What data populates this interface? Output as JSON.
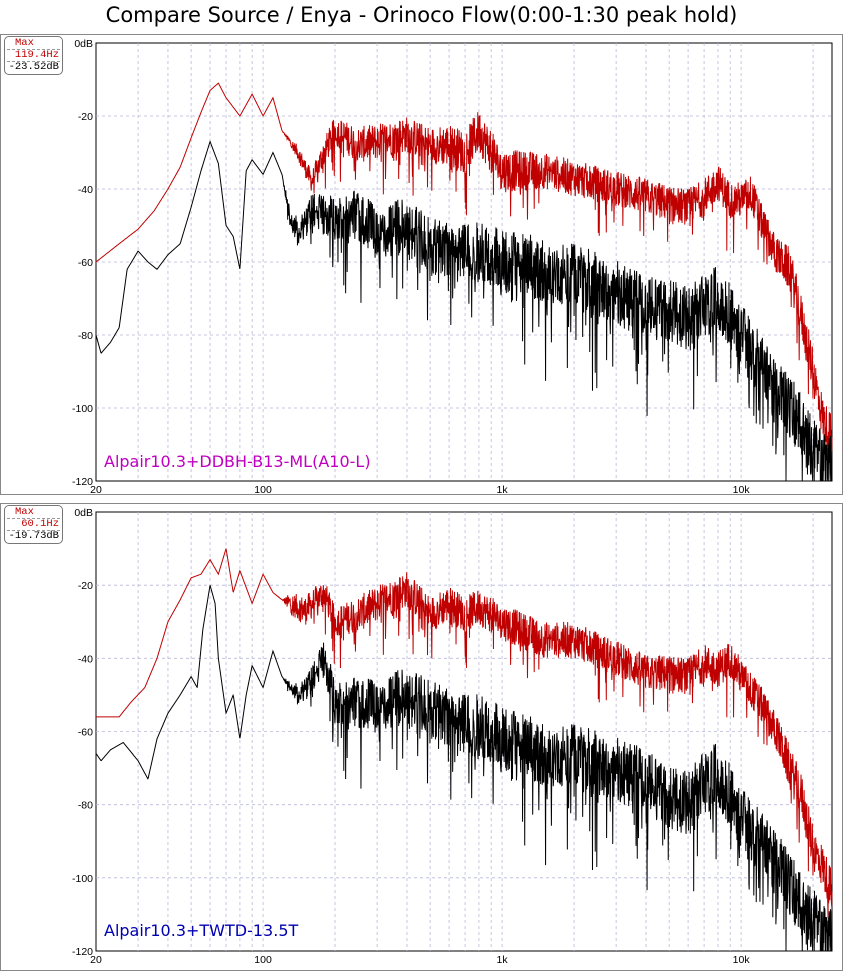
{
  "title": "Compare Source /  Enya - Orinoco Flow(0:00-1:30 peak hold)",
  "colors": {
    "red": "#c00000",
    "black": "#000000",
    "grid": "#b8b8d8",
    "caption1": "#c000c0",
    "caption2": "#0000b0"
  },
  "chart_data": [
    {
      "type": "line",
      "caption": "Alpair10.3+DDBH-B13-ML(A10-L)",
      "marker": {
        "label": "Max",
        "freq": "119.4Hz",
        "level": "-23.52dB"
      },
      "x_scale": "log",
      "xlim": [
        20,
        24000
      ],
      "ylim": [
        -120,
        0
      ],
      "x_ticks": [
        {
          "v": 20,
          "t": "20"
        },
        {
          "v": 100,
          "t": "100"
        },
        {
          "v": 1000,
          "t": "1k"
        },
        {
          "v": 10000,
          "t": "10k"
        }
      ],
      "y_ticks": [
        {
          "v": 0,
          "t": "0dB"
        },
        {
          "v": -20,
          "t": "-20"
        },
        {
          "v": -40,
          "t": "-40"
        },
        {
          "v": -60,
          "t": "-60"
        },
        {
          "v": -80,
          "t": "-80"
        },
        {
          "v": -100,
          "t": "-100"
        },
        {
          "v": -120,
          "t": "-120"
        }
      ],
      "grid": true,
      "series": [
        {
          "color": "#c00000",
          "points": [
            [
              20,
              -60
            ],
            [
              25,
              -55
            ],
            [
              30,
              -51
            ],
            [
              35,
              -46
            ],
            [
              40,
              -40
            ],
            [
              45,
              -34
            ],
            [
              50,
              -26
            ],
            [
              55,
              -19
            ],
            [
              60,
              -13
            ],
            [
              65,
              -11
            ],
            [
              70,
              -15
            ],
            [
              80,
              -20
            ],
            [
              90,
              -14
            ],
            [
              100,
              -20
            ],
            [
              110,
              -15
            ],
            [
              120,
              -24
            ],
            [
              140,
              -30
            ],
            [
              160,
              -38
            ],
            [
              180,
              -30
            ],
            [
              200,
              -24
            ],
            [
              250,
              -28
            ],
            [
              300,
              -27
            ],
            [
              400,
              -25
            ],
            [
              500,
              -28
            ],
            [
              600,
              -28
            ],
            [
              700,
              -30
            ],
            [
              800,
              -24
            ],
            [
              1000,
              -35
            ],
            [
              1500,
              -35
            ],
            [
              2000,
              -37
            ],
            [
              3000,
              -40
            ],
            [
              4000,
              -42
            ],
            [
              5000,
              -44
            ],
            [
              6000,
              -45
            ],
            [
              7000,
              -42
            ],
            [
              8000,
              -38
            ],
            [
              9000,
              -43
            ],
            [
              10000,
              -43
            ],
            [
              11000,
              -41
            ],
            [
              12000,
              -48
            ],
            [
              14000,
              -58
            ],
            [
              16000,
              -62
            ],
            [
              18000,
              -76
            ],
            [
              20000,
              -90
            ],
            [
              22000,
              -103
            ],
            [
              24000,
              -108
            ]
          ],
          "noise": [
            0,
            0,
            0,
            0,
            0,
            0,
            0,
            0,
            0,
            0,
            0,
            0,
            0,
            0,
            0,
            0,
            2,
            3,
            4,
            4,
            5,
            5,
            5,
            5,
            6,
            6,
            6,
            6,
            5,
            5,
            5,
            5,
            5,
            5,
            5,
            5,
            5,
            5,
            5,
            5,
            5,
            6,
            6,
            6,
            6,
            6
          ]
        },
        {
          "color": "#000000",
          "points": [
            [
              20,
              -80
            ],
            [
              21,
              -85
            ],
            [
              23,
              -82
            ],
            [
              25,
              -78
            ],
            [
              27,
              -62
            ],
            [
              30,
              -57
            ],
            [
              33,
              -60
            ],
            [
              36,
              -62
            ],
            [
              40,
              -58
            ],
            [
              45,
              -55
            ],
            [
              50,
              -45
            ],
            [
              55,
              -35
            ],
            [
              60,
              -27
            ],
            [
              65,
              -33
            ],
            [
              70,
              -50
            ],
            [
              75,
              -53
            ],
            [
              80,
              -62
            ],
            [
              85,
              -35
            ],
            [
              90,
              -32
            ],
            [
              100,
              -36
            ],
            [
              110,
              -30
            ],
            [
              120,
              -36
            ],
            [
              130,
              -48
            ],
            [
              140,
              -52
            ],
            [
              160,
              -46
            ],
            [
              200,
              -48
            ],
            [
              250,
              -47
            ],
            [
              300,
              -52
            ],
            [
              400,
              -50
            ],
            [
              500,
              -56
            ],
            [
              700,
              -56
            ],
            [
              1000,
              -60
            ],
            [
              1500,
              -62
            ],
            [
              2000,
              -64
            ],
            [
              3000,
              -68
            ],
            [
              4000,
              -73
            ],
            [
              5000,
              -73
            ],
            [
              6000,
              -76
            ],
            [
              7000,
              -72
            ],
            [
              8000,
              -70
            ],
            [
              9000,
              -75
            ],
            [
              10000,
              -80
            ],
            [
              12000,
              -88
            ],
            [
              14000,
              -96
            ],
            [
              16000,
              -100
            ],
            [
              18000,
              -105
            ],
            [
              20000,
              -112
            ],
            [
              24000,
              -117
            ]
          ],
          "noise": [
            0,
            0,
            0,
            0,
            0,
            0,
            0,
            0,
            0,
            0,
            0,
            0,
            0,
            0,
            0,
            0,
            0,
            0,
            0,
            0,
            0,
            0,
            3,
            4,
            5,
            6,
            7,
            7,
            8,
            8,
            8,
            9,
            9,
            9,
            9,
            9,
            9,
            9,
            9,
            9,
            9,
            9,
            9,
            9,
            9,
            9,
            9,
            9
          ]
        }
      ]
    },
    {
      "type": "line",
      "caption": "Alpair10.3+TWTD-13.5T",
      "marker": {
        "label": "Max",
        "freq": "60.1Hz",
        "level": "-19.73dB"
      },
      "x_scale": "log",
      "xlim": [
        20,
        24000
      ],
      "ylim": [
        -120,
        0
      ],
      "x_ticks": [
        {
          "v": 20,
          "t": "20"
        },
        {
          "v": 100,
          "t": "100"
        },
        {
          "v": 1000,
          "t": "1k"
        },
        {
          "v": 10000,
          "t": "10k"
        }
      ],
      "y_ticks": [
        {
          "v": 0,
          "t": "0dB"
        },
        {
          "v": -20,
          "t": "-20"
        },
        {
          "v": -40,
          "t": "-40"
        },
        {
          "v": -60,
          "t": "-60"
        },
        {
          "v": -80,
          "t": "-80"
        },
        {
          "v": -100,
          "t": "-100"
        },
        {
          "v": -120,
          "t": "-120"
        }
      ],
      "grid": true,
      "series": [
        {
          "color": "#c00000",
          "points": [
            [
              20,
              -56
            ],
            [
              25,
              -56
            ],
            [
              28,
              -52
            ],
            [
              32,
              -48
            ],
            [
              36,
              -40
            ],
            [
              40,
              -30
            ],
            [
              45,
              -24
            ],
            [
              50,
              -18
            ],
            [
              55,
              -17
            ],
            [
              60,
              -13
            ],
            [
              65,
              -17
            ],
            [
              70,
              -10
            ],
            [
              75,
              -22
            ],
            [
              80,
              -16
            ],
            [
              90,
              -25
            ],
            [
              100,
              -17
            ],
            [
              110,
              -22
            ],
            [
              120,
              -24
            ],
            [
              130,
              -25
            ],
            [
              150,
              -27
            ],
            [
              180,
              -22
            ],
            [
              200,
              -30
            ],
            [
              250,
              -28
            ],
            [
              300,
              -25
            ],
            [
              400,
              -21
            ],
            [
              500,
              -28
            ],
            [
              600,
              -25
            ],
            [
              700,
              -28
            ],
            [
              800,
              -26
            ],
            [
              1000,
              -30
            ],
            [
              1500,
              -35
            ],
            [
              2000,
              -35
            ],
            [
              3000,
              -40
            ],
            [
              4000,
              -44
            ],
            [
              5000,
              -44
            ],
            [
              6000,
              -45
            ],
            [
              7000,
              -41
            ],
            [
              8000,
              -43
            ],
            [
              9000,
              -40
            ],
            [
              10000,
              -45
            ],
            [
              12000,
              -52
            ],
            [
              14000,
              -60
            ],
            [
              16000,
              -70
            ],
            [
              18000,
              -78
            ],
            [
              20000,
              -92
            ],
            [
              22000,
              -97
            ],
            [
              24000,
              -104
            ]
          ],
          "noise": [
            0,
            0,
            0,
            0,
            0,
            0,
            0,
            0,
            0,
            0,
            0,
            0,
            0,
            0,
            0,
            0,
            0,
            0,
            3,
            4,
            4,
            4,
            5,
            5,
            5,
            5,
            5,
            5,
            5,
            5,
            5,
            5,
            5,
            5,
            5,
            5,
            5,
            5,
            5,
            5,
            5,
            5,
            6,
            6,
            6,
            6,
            6
          ]
        },
        {
          "color": "#000000",
          "points": [
            [
              20,
              -66
            ],
            [
              21,
              -68
            ],
            [
              23,
              -65
            ],
            [
              26,
              -63
            ],
            [
              30,
              -68
            ],
            [
              33,
              -73
            ],
            [
              36,
              -62
            ],
            [
              40,
              -55
            ],
            [
              45,
              -50
            ],
            [
              50,
              -45
            ],
            [
              53,
              -48
            ],
            [
              56,
              -32
            ],
            [
              60,
              -20
            ],
            [
              63,
              -25
            ],
            [
              65,
              -40
            ],
            [
              70,
              -55
            ],
            [
              75,
              -50
            ],
            [
              80,
              -62
            ],
            [
              85,
              -50
            ],
            [
              90,
              -42
            ],
            [
              100,
              -48
            ],
            [
              110,
              -38
            ],
            [
              120,
              -45
            ],
            [
              140,
              -50
            ],
            [
              160,
              -46
            ],
            [
              180,
              -40
            ],
            [
              200,
              -52
            ],
            [
              250,
              -52
            ],
            [
              300,
              -53
            ],
            [
              400,
              -50
            ],
            [
              500,
              -54
            ],
            [
              700,
              -57
            ],
            [
              1000,
              -62
            ],
            [
              1500,
              -66
            ],
            [
              2000,
              -67
            ],
            [
              3000,
              -70
            ],
            [
              4000,
              -74
            ],
            [
              5000,
              -78
            ],
            [
              6000,
              -80
            ],
            [
              7000,
              -74
            ],
            [
              8000,
              -72
            ],
            [
              9000,
              -78
            ],
            [
              10000,
              -84
            ],
            [
              12000,
              -90
            ],
            [
              14000,
              -96
            ],
            [
              16000,
              -102
            ],
            [
              18000,
              -108
            ],
            [
              20000,
              -112
            ],
            [
              24000,
              -118
            ]
          ],
          "noise": [
            0,
            0,
            0,
            0,
            0,
            0,
            0,
            0,
            0,
            0,
            0,
            0,
            0,
            0,
            0,
            0,
            0,
            0,
            0,
            0,
            0,
            0,
            0,
            3,
            4,
            5,
            6,
            7,
            7,
            8,
            8,
            9,
            9,
            9,
            9,
            9,
            9,
            9,
            9,
            9,
            9,
            9,
            9,
            9,
            9,
            9,
            9,
            9,
            9
          ]
        }
      ]
    }
  ]
}
